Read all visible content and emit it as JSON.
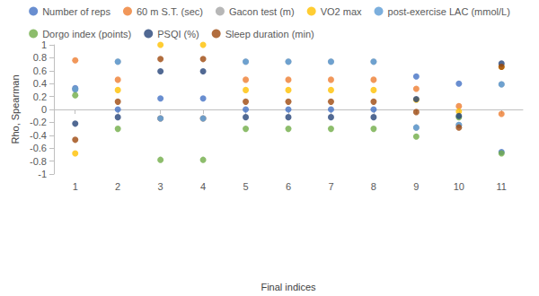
{
  "chart_data": {
    "type": "scatter",
    "x_label": "Final indices",
    "y_label": "Rho, Spearman",
    "categories": [
      "1",
      "2",
      "3",
      "4",
      "5",
      "6",
      "7",
      "8",
      "9",
      "10",
      "11"
    ],
    "ylim": [
      -1,
      1
    ],
    "yticks": [
      -1,
      -0.8,
      -0.6,
      -0.4,
      -0.2,
      0,
      0.2,
      0.4,
      0.6,
      0.8,
      1
    ],
    "grid": false,
    "legend": "top",
    "marker": "circle",
    "series": [
      {
        "name": "Number of reps",
        "color": "#4472c4",
        "values": [
          0.33,
          0,
          0.17,
          0.17,
          0,
          0,
          0,
          0,
          0.51,
          0.4,
          -0.66
        ]
      },
      {
        "name": "60 m S.T. (sec)",
        "color": "#ed7d31",
        "values": [
          0.76,
          0.46,
          -0.14,
          -0.14,
          0.46,
          0.46,
          0.46,
          0.46,
          0.32,
          0.05,
          -0.07
        ]
      },
      {
        "name": "Gacon test (m)",
        "color": "#a5a5a5",
        "values": [
          0.31,
          0.74,
          -0.14,
          -0.14,
          0.74,
          0.74,
          0.74,
          0.74,
          -0.28,
          -0.24,
          0.39
        ]
      },
      {
        "name": "VO2 max",
        "color": "#ffc000",
        "values": [
          -0.68,
          0.3,
          1,
          1,
          0.3,
          0.3,
          0.3,
          0.3,
          0.15,
          -0.03,
          0.66
        ]
      },
      {
        "name": "post-exercise LAC (mmol/L)",
        "color": "#5b9bd5",
        "values": [
          0.31,
          0.74,
          -0.14,
          -0.14,
          0.74,
          0.74,
          0.74,
          0.74,
          -0.28,
          -0.24,
          0.39
        ]
      },
      {
        "name": "Dorgo index (points)",
        "color": "#70ad47",
        "values": [
          0.22,
          -0.3,
          -0.78,
          -0.78,
          -0.3,
          -0.3,
          -0.3,
          -0.3,
          -0.42,
          -0.12,
          -0.68
        ]
      },
      {
        "name": "PSQI (%)",
        "color": "#264478",
        "values": [
          -0.22,
          -0.12,
          0.59,
          0.59,
          -0.12,
          -0.12,
          -0.12,
          -0.12,
          0.16,
          -0.1,
          0.71
        ]
      },
      {
        "name": "Sleep duration (min)",
        "color": "#9e480e",
        "values": [
          -0.47,
          0.12,
          0.78,
          0.78,
          0.12,
          0.12,
          0.12,
          0.12,
          -0.04,
          -0.28,
          0.66
        ]
      }
    ]
  }
}
